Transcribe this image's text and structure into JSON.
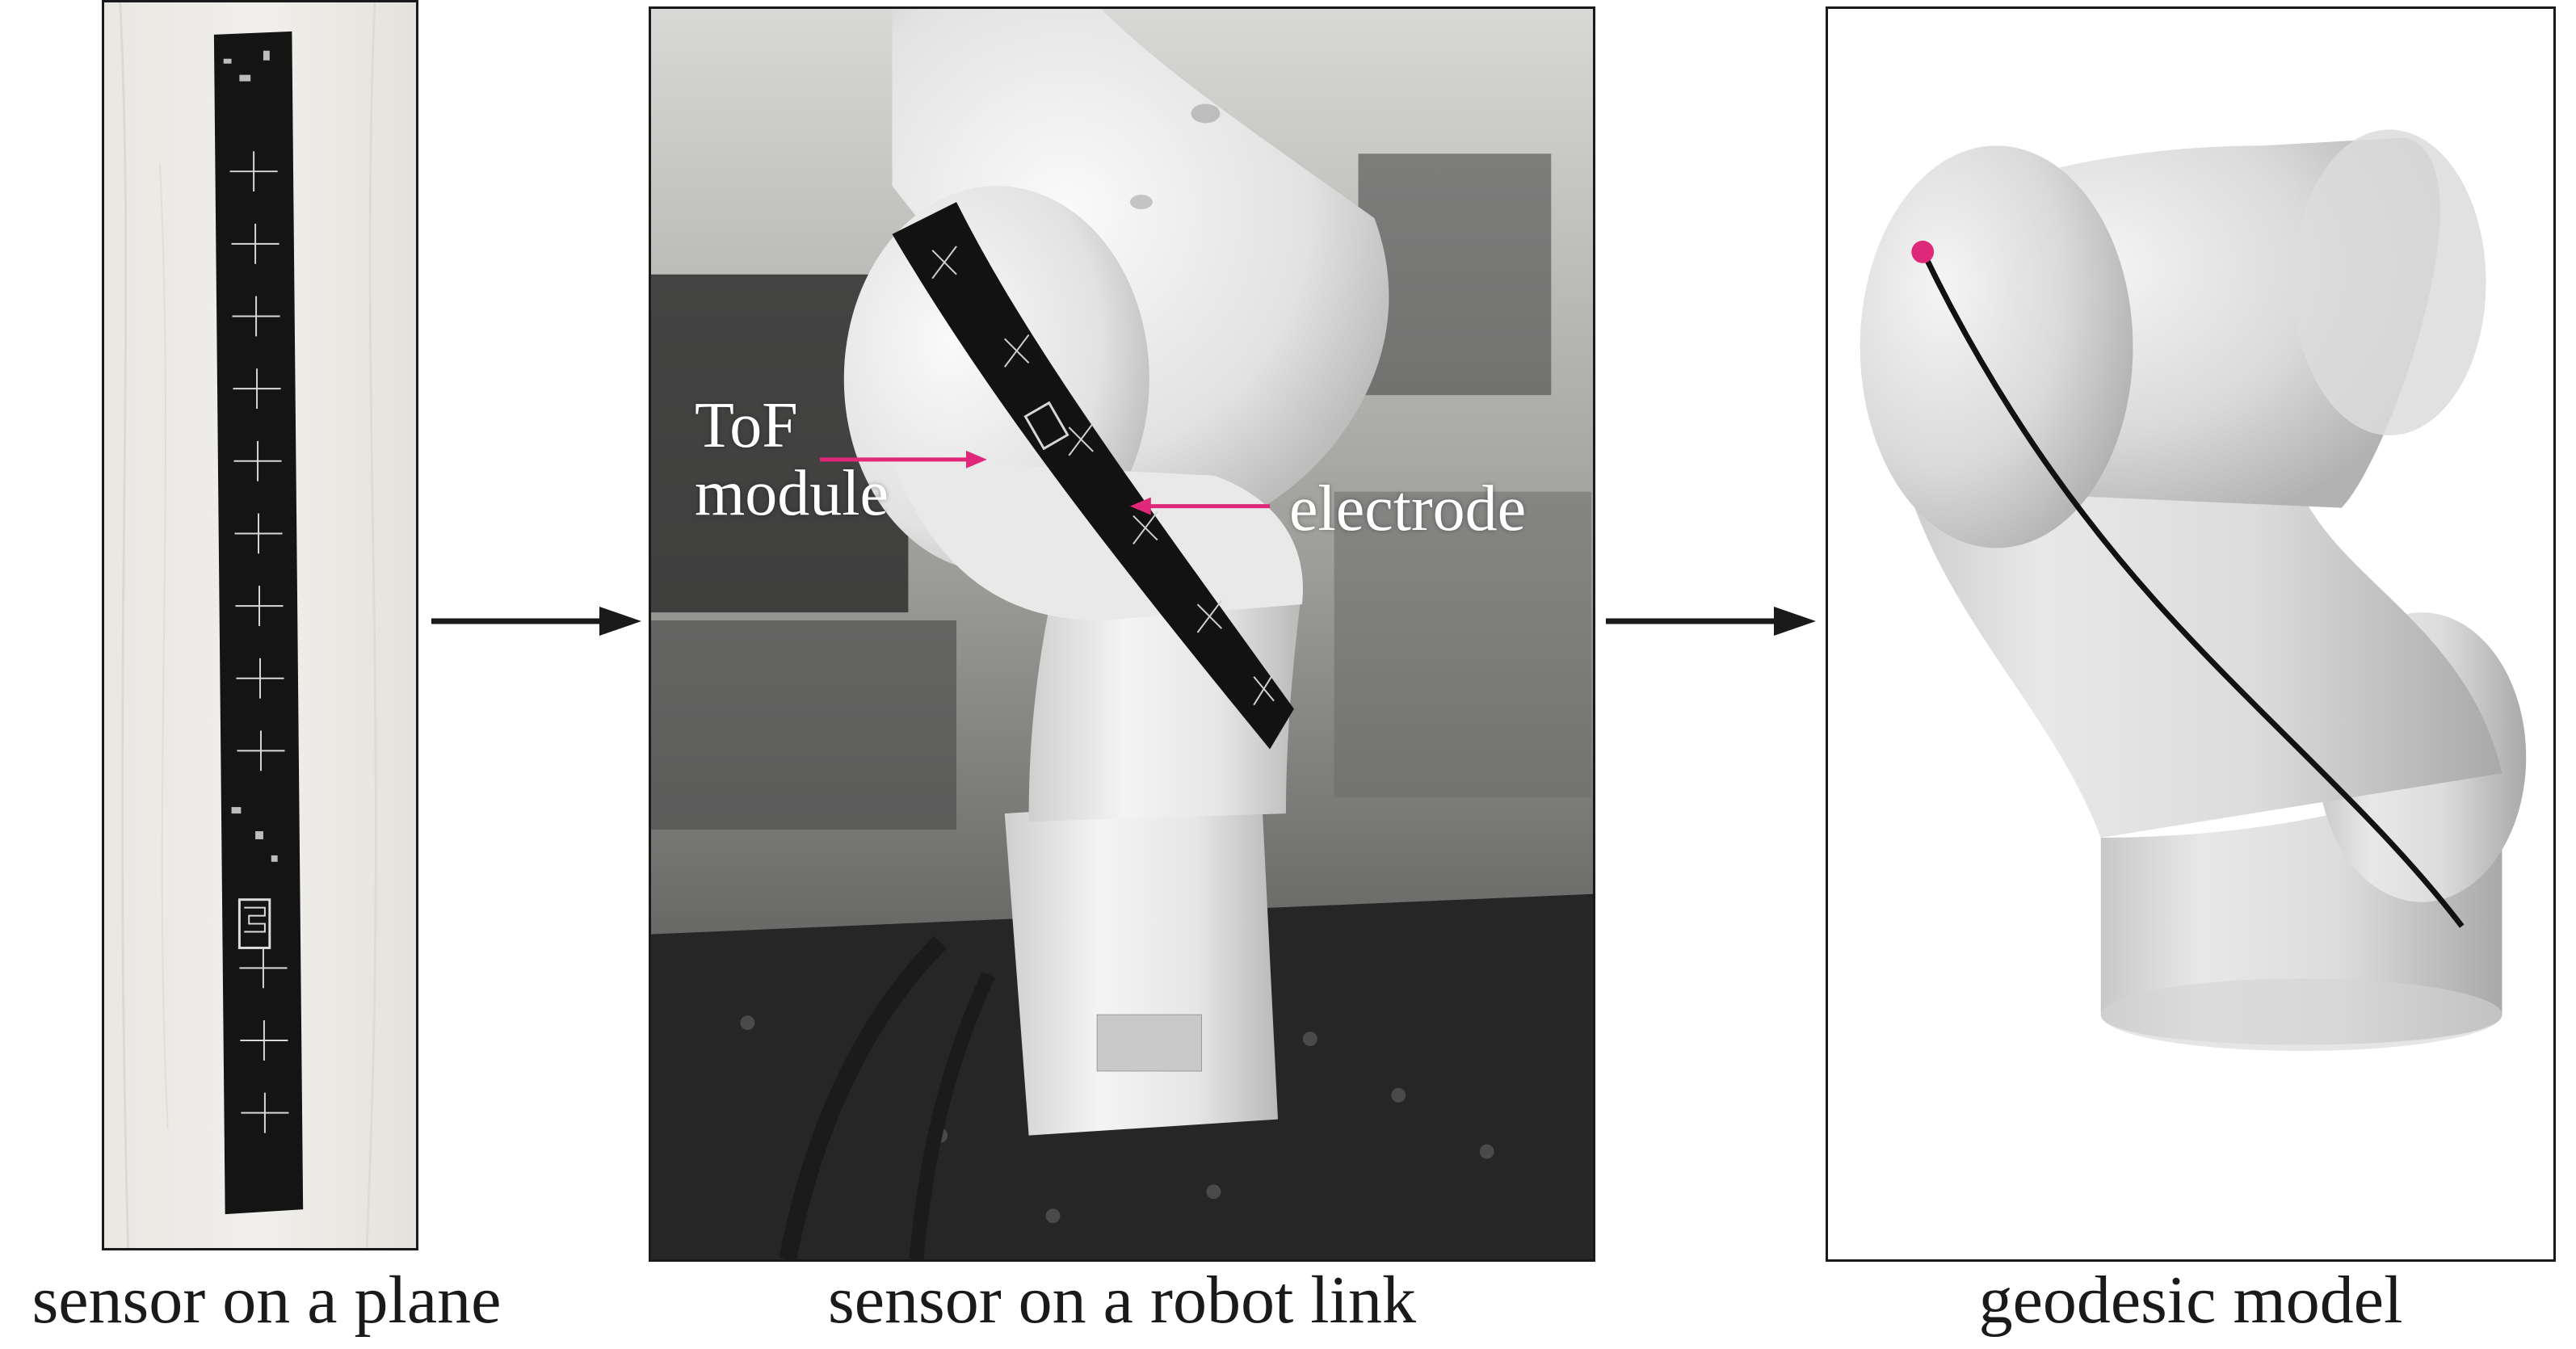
{
  "captions": {
    "plane": "sensor on a plane",
    "robot": "sensor on a robot link",
    "model": "geodesic model"
  },
  "callouts": {
    "tof_line1": "ToF",
    "tof_line2": "module",
    "electrode": "electrode"
  },
  "colors": {
    "callout_arrow": "#e0287a",
    "marker_dot": "#e0287a",
    "flow_arrow": "#1a1a1a",
    "geodesic_line": "#111111",
    "sensor_strip": "#111111"
  }
}
